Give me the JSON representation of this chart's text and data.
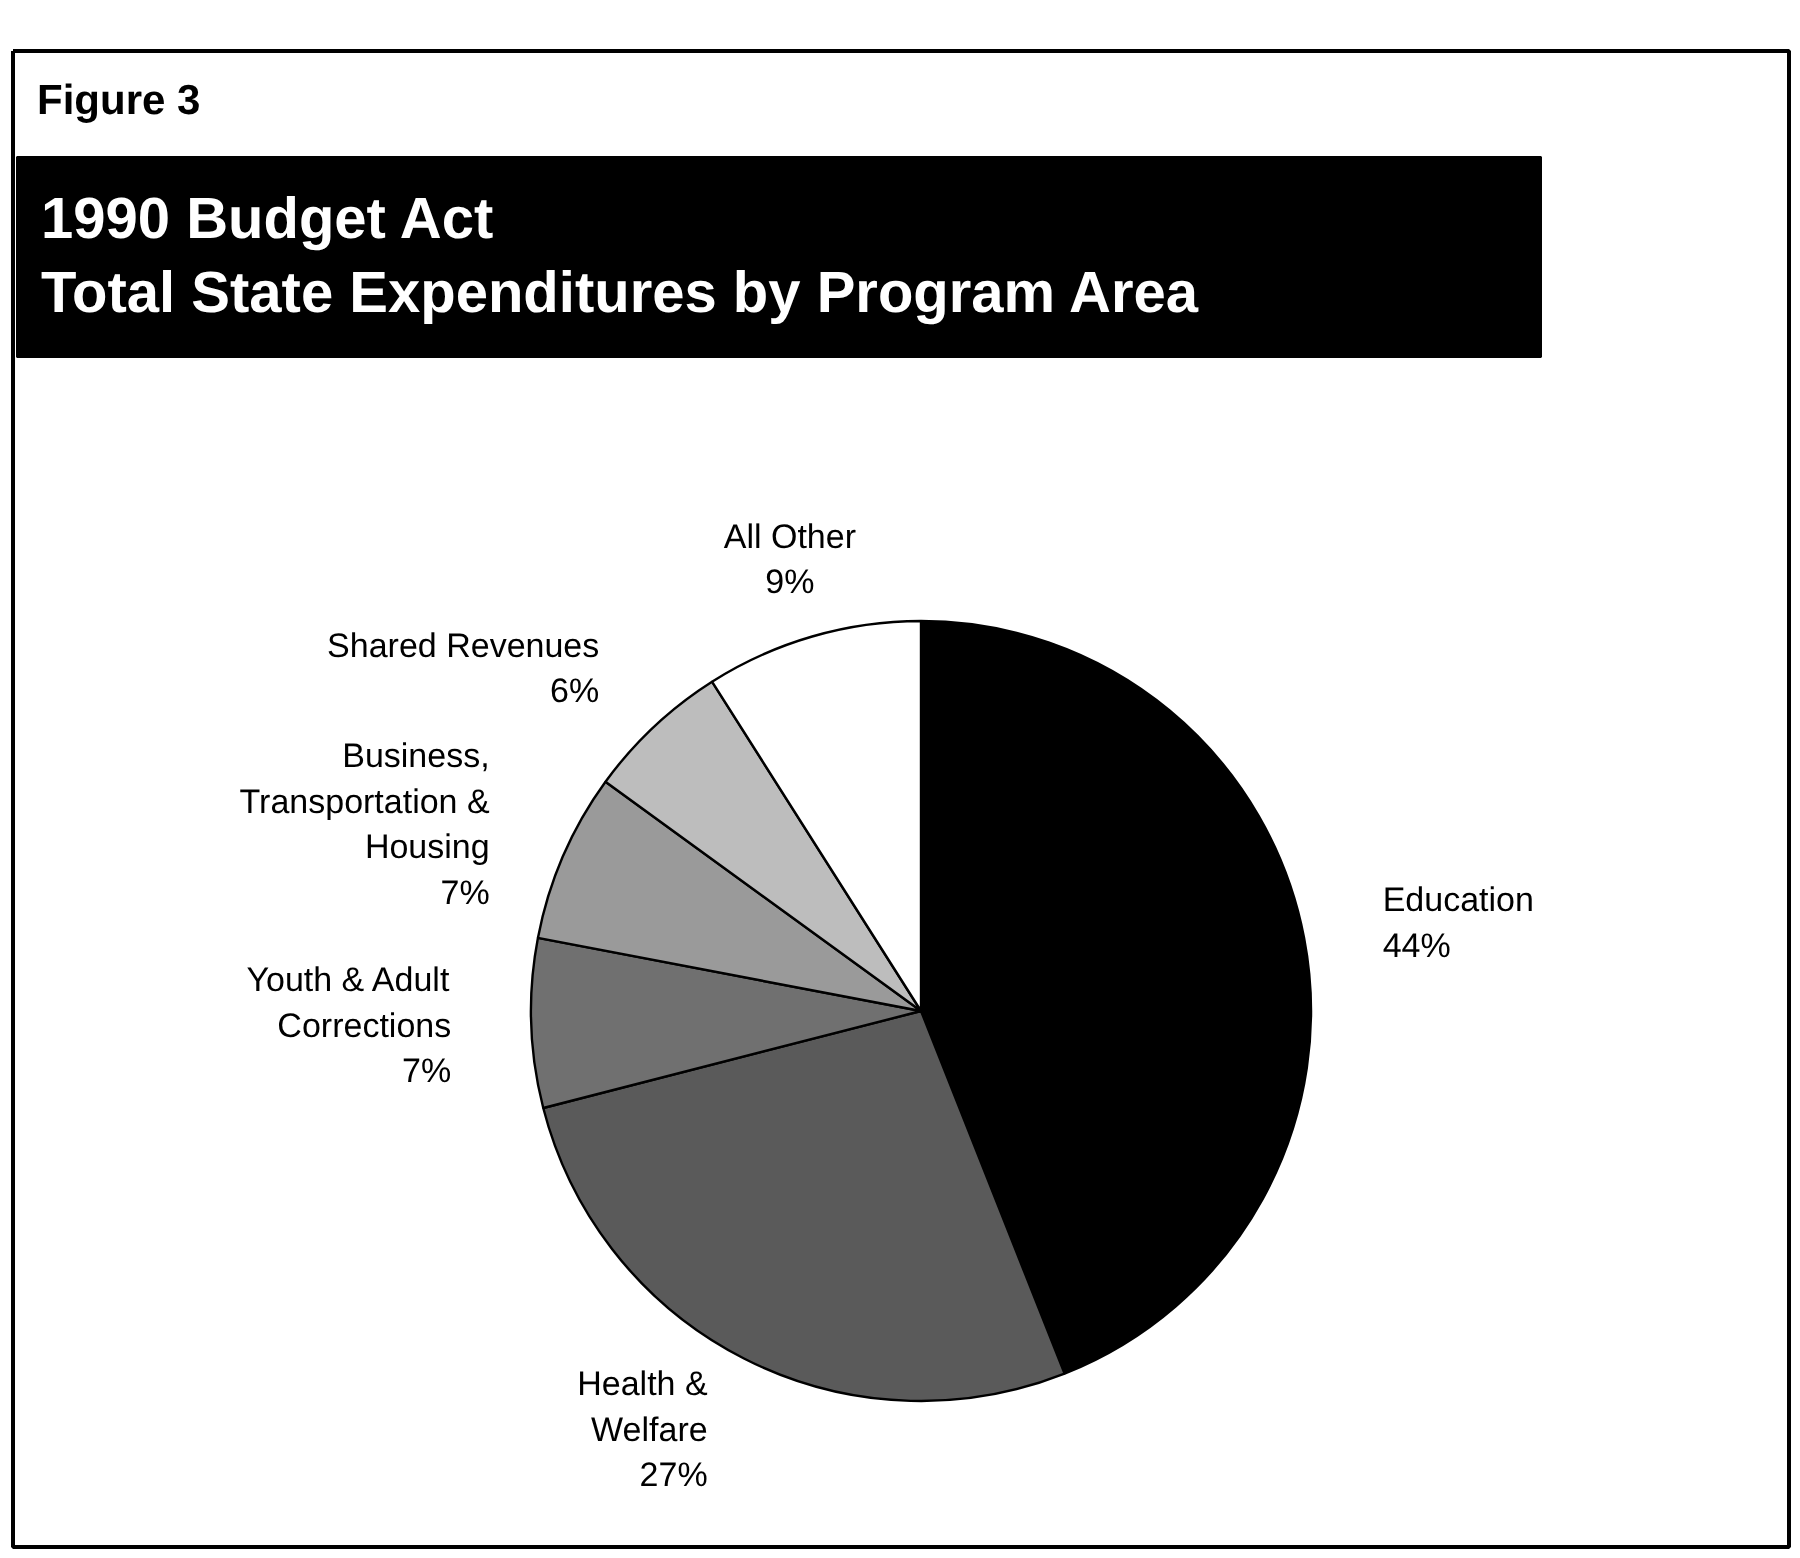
{
  "chart_data": {
    "type": "pie",
    "subtitle": "Figure 3",
    "title": "1990 Budget Act\nTotal State Expenditures by Program Area",
    "categories": [
      "Education",
      "Health &\nWelfare",
      "Youth & Adult\nCorrections",
      "Business,\nTransportation &\nHousing",
      "Shared Revenues",
      "All Other"
    ],
    "values": [
      44,
      27,
      7,
      7,
      6,
      9
    ],
    "value_labels": [
      "44%",
      "27%",
      "7%",
      "7%",
      "6%",
      "9%"
    ],
    "colors": [
      "#000000",
      "#5a5a5a",
      "#707070",
      "#9a9a9a",
      "#bdbdbd",
      "#ffffff"
    ]
  }
}
